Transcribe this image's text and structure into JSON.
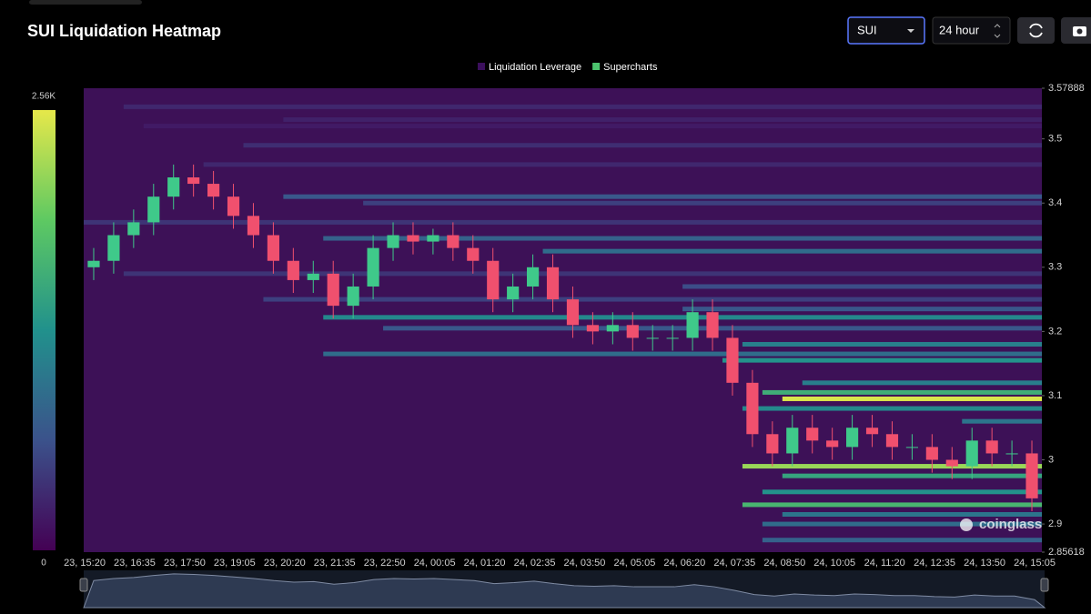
{
  "header": {
    "title": "SUI Liquidation Heatmap",
    "symbol": "SUI",
    "interval": "24 hour"
  },
  "chart_data": {
    "type": "heatmap",
    "watermark": "coinglass",
    "legend": [
      {
        "name": "Liquidation Leverage",
        "color": "#3b0f5c"
      },
      {
        "name": "Supercharts",
        "color": "#4cc46e"
      }
    ],
    "colorscale": [
      "#440154",
      "#3b528b",
      "#21918c",
      "#5ec962",
      "#e6e84a"
    ],
    "clim": [
      0,
      2560
    ],
    "cticks": [
      0,
      {
        "value": 2560,
        "label": "2.56K"
      }
    ],
    "background": "#3d1157",
    "up_color": "#3fc98a",
    "down_color": "#f0506e",
    "x_labels": [
      "23, 15:20",
      "23, 16:35",
      "23, 17:50",
      "23, 19:05",
      "23, 20:20",
      "23, 21:35",
      "23, 22:50",
      "24, 00:05",
      "24, 01:20",
      "24, 02:35",
      "24, 03:50",
      "24, 05:05",
      "24, 06:20",
      "24, 07:35",
      "24, 08:50",
      "24, 10:05",
      "24, 11:20",
      "24, 12:35",
      "24, 13:50",
      "24, 15:05"
    ],
    "ylim": [
      2.85618,
      3.57888
    ],
    "yticks": [
      2.85618,
      2.9,
      3,
      3.1,
      3.2,
      3.3,
      3.4,
      3.5,
      3.57888
    ],
    "open": [
      3.3,
      3.31,
      3.35,
      3.37,
      3.41,
      3.44,
      3.43,
      3.41,
      3.38,
      3.35,
      3.31,
      3.28,
      3.29,
      3.24,
      3.27,
      3.33,
      3.35,
      3.34,
      3.35,
      3.33,
      3.31,
      3.25,
      3.27,
      3.3,
      3.25,
      3.21,
      3.2,
      3.21,
      3.19,
      3.19,
      3.19,
      3.23,
      3.19,
      3.12,
      3.04,
      3.01,
      3.05,
      3.03,
      3.02,
      3.05,
      3.04,
      3.02,
      3.02,
      3.0,
      2.99,
      3.03,
      3.01,
      3.01
    ],
    "high": [
      3.33,
      3.37,
      3.39,
      3.43,
      3.46,
      3.46,
      3.45,
      3.43,
      3.4,
      3.37,
      3.33,
      3.31,
      3.31,
      3.29,
      3.35,
      3.37,
      3.37,
      3.36,
      3.37,
      3.35,
      3.33,
      3.29,
      3.32,
      3.32,
      3.27,
      3.23,
      3.23,
      3.23,
      3.21,
      3.21,
      3.25,
      3.25,
      3.21,
      3.14,
      3.06,
      3.07,
      3.07,
      3.05,
      3.07,
      3.07,
      3.06,
      3.04,
      3.04,
      3.02,
      3.05,
      3.05,
      3.03,
      3.03
    ],
    "low": [
      3.28,
      3.29,
      3.33,
      3.35,
      3.39,
      3.41,
      3.39,
      3.36,
      3.33,
      3.29,
      3.26,
      3.26,
      3.22,
      3.22,
      3.25,
      3.31,
      3.32,
      3.32,
      3.31,
      3.29,
      3.23,
      3.23,
      3.25,
      3.23,
      3.19,
      3.18,
      3.18,
      3.17,
      3.17,
      3.17,
      3.17,
      3.17,
      3.1,
      3.02,
      2.99,
      2.99,
      3.01,
      3.0,
      3.0,
      3.02,
      3.0,
      3.0,
      2.98,
      2.97,
      2.97,
      2.99,
      2.99,
      2.92
    ],
    "close": [
      3.31,
      3.35,
      3.37,
      3.41,
      3.44,
      3.43,
      3.41,
      3.38,
      3.35,
      3.31,
      3.28,
      3.29,
      3.24,
      3.27,
      3.33,
      3.35,
      3.34,
      3.35,
      3.33,
      3.31,
      3.25,
      3.27,
      3.3,
      3.25,
      3.21,
      3.2,
      3.21,
      3.19,
      3.19,
      3.19,
      3.23,
      3.19,
      3.12,
      3.04,
      3.01,
      3.05,
      3.03,
      3.02,
      3.05,
      3.04,
      3.02,
      3.02,
      3.0,
      2.99,
      3.03,
      3.01,
      3.01,
      2.94
    ],
    "bands": [
      {
        "price": 3.55,
        "start": 2,
        "value": 300
      },
      {
        "price": 3.53,
        "start": 10,
        "value": 250
      },
      {
        "price": 3.52,
        "start": 3,
        "value": 200
      },
      {
        "price": 3.49,
        "start": 8,
        "value": 350
      },
      {
        "price": 3.46,
        "start": 6,
        "value": 300
      },
      {
        "price": 3.41,
        "start": 10,
        "value": 700
      },
      {
        "price": 3.4,
        "start": 14,
        "value": 500
      },
      {
        "price": 3.37,
        "start": 0,
        "value": 400
      },
      {
        "price": 3.345,
        "start": 12,
        "value": 800
      },
      {
        "price": 3.325,
        "start": 23,
        "value": 900
      },
      {
        "price": 3.29,
        "start": 2,
        "value": 400
      },
      {
        "price": 3.27,
        "start": 30,
        "value": 600
      },
      {
        "price": 3.25,
        "start": 9,
        "value": 500
      },
      {
        "price": 3.235,
        "start": 30,
        "value": 700
      },
      {
        "price": 3.222,
        "start": 12,
        "value": 1200
      },
      {
        "price": 3.205,
        "start": 15,
        "value": 700
      },
      {
        "price": 3.18,
        "start": 33,
        "value": 1100
      },
      {
        "price": 3.165,
        "start": 12,
        "value": 900
      },
      {
        "price": 3.155,
        "start": 32,
        "value": 1300
      },
      {
        "price": 3.12,
        "start": 36,
        "value": 1100
      },
      {
        "price": 3.105,
        "start": 34,
        "value": 1600
      },
      {
        "price": 3.095,
        "start": 35,
        "value": 2500
      },
      {
        "price": 3.08,
        "start": 33,
        "value": 1200
      },
      {
        "price": 3.06,
        "start": 44,
        "value": 1000
      },
      {
        "price": 2.99,
        "start": 33,
        "value": 2200
      },
      {
        "price": 2.975,
        "start": 35,
        "value": 1500
      },
      {
        "price": 2.95,
        "start": 34,
        "value": 1300
      },
      {
        "price": 2.93,
        "start": 33,
        "value": 1700
      },
      {
        "price": 2.915,
        "start": 35,
        "value": 1000
      },
      {
        "price": 2.9,
        "start": 34,
        "value": 900
      },
      {
        "price": 2.875,
        "start": 34,
        "value": 800
      }
    ]
  }
}
